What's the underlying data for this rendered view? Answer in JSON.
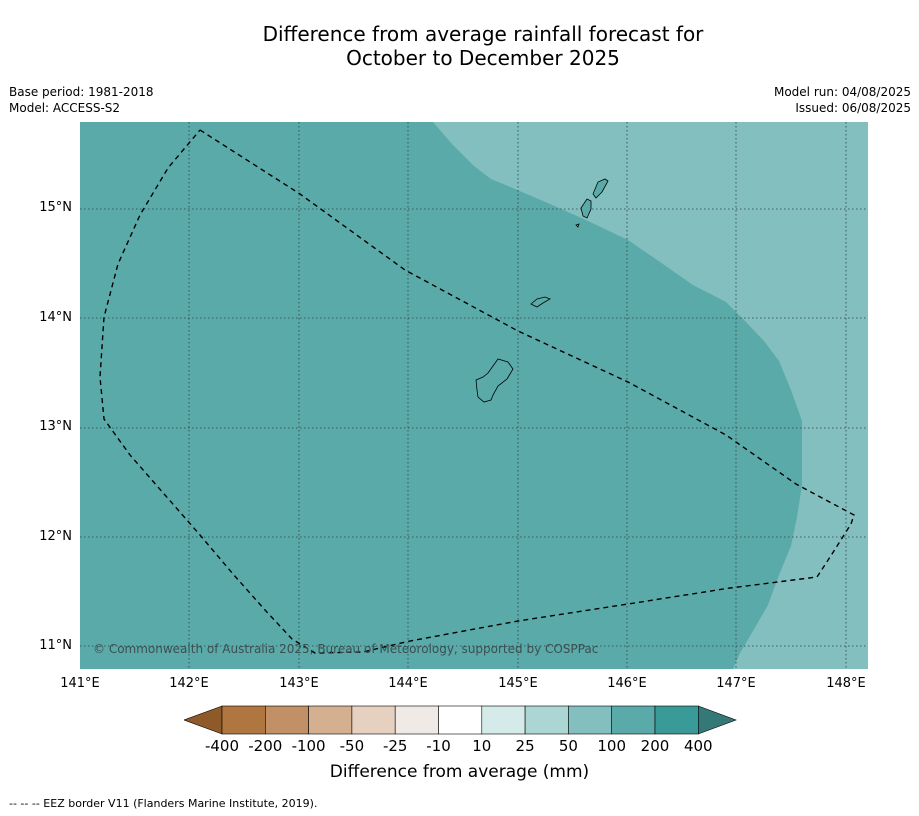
{
  "title": {
    "line1": "Difference from average rainfall forecast for",
    "line2": "October to December 2025"
  },
  "meta": {
    "base_period": "Base period: 1981-2018",
    "model": "Model: ACCESS-S2",
    "model_run": "Model run: 04/08/2025",
    "issued": "Issued: 06/08/2025"
  },
  "map": {
    "lat_labels": [
      "15°N",
      "14°N",
      "13°N",
      "12°N",
      "11°N"
    ],
    "lon_labels": [
      "141°E",
      "142°E",
      "143°E",
      "144°E",
      "145°E",
      "146°E",
      "147°E",
      "148°E"
    ],
    "regions": [
      {
        "category": "100 to 200 mm",
        "color": "#5baaaa"
      },
      {
        "category": "50 to 100 mm",
        "color": "#83bfbe"
      }
    ],
    "copyright": "© Commonwealth of Australia 2025, Bureau of Meteorology, supported by COSPPac"
  },
  "colorbar": {
    "ticks": [
      "-400",
      "-200",
      "-100",
      "-50",
      "-25",
      "-10",
      "10",
      "25",
      "50",
      "100",
      "200",
      "400"
    ],
    "colors": [
      "#8f5a2a",
      "#b07640",
      "#c19066",
      "#d4af90",
      "#e6d0bf",
      "#efeae6",
      "#ffffff",
      "#d5ebe9",
      "#acd6d4",
      "#83bfbe",
      "#5baaaa",
      "#3a9a98",
      "#347878"
    ],
    "label": "Difference from average (mm)"
  },
  "footnote": "--  --  -- EEZ border V11 (Flanders Marine Institute, 2019)."
}
